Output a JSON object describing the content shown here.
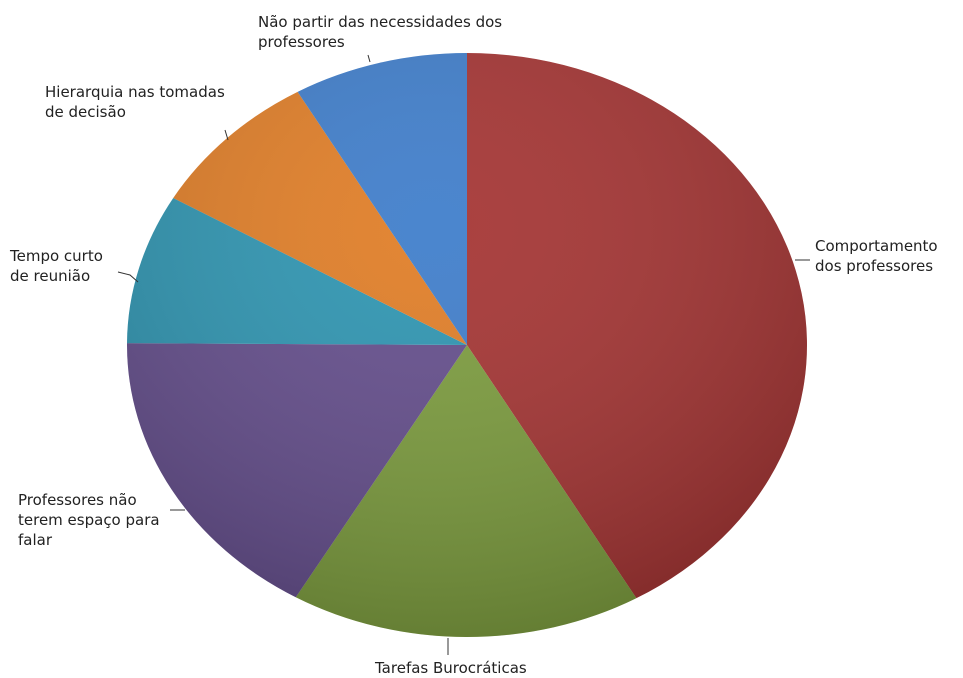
{
  "chart_data": {
    "type": "pie",
    "categories": [
      "Comportamento dos professores",
      "Tarefas Burocráticas",
      "Professores não terem espaço para falar",
      "Tempo curto de reunião",
      "Hierarquia nas tomadas de decisão",
      "Não partir das necessidades dos professores"
    ],
    "values": [
      41.7,
      16.7,
      16.7,
      8.3,
      8.3,
      8.3
    ],
    "colors": [
      "#a3302f",
      "#7a9b3a",
      "#614a8a",
      "#2a93b0",
      "#e07b22",
      "#3b7bca"
    ]
  }
}
